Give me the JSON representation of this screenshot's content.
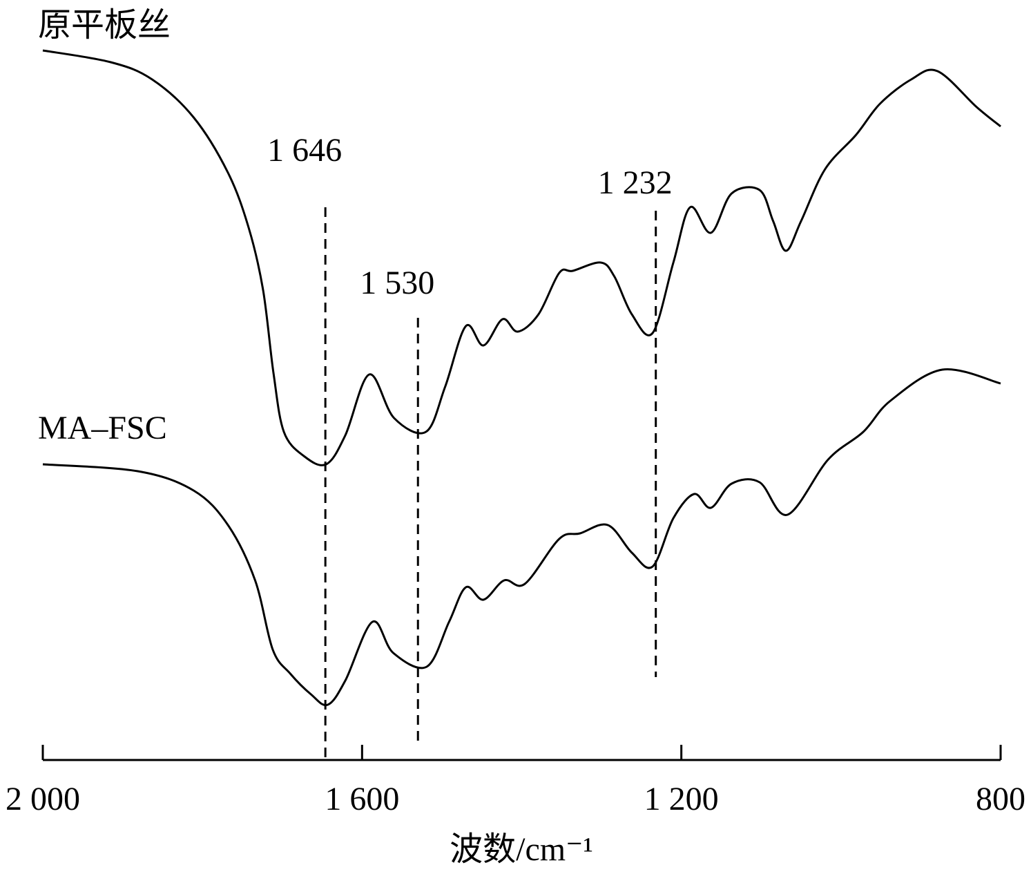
{
  "chart_data": {
    "type": "line",
    "xlabel": "波数/cm⁻¹",
    "xlim": [
      2000,
      800
    ],
    "xticks": [
      {
        "value": 2000,
        "label": "2 000"
      },
      {
        "value": 1600,
        "label": "1 600"
      },
      {
        "value": 1200,
        "label": "1 200"
      },
      800
    ],
    "ylim": [
      0,
      110
    ],
    "annotations": [
      {
        "value": 1646,
        "label": "1 646"
      },
      {
        "value": 1530,
        "label": "1 530"
      },
      {
        "value": 1232,
        "label": "1 232"
      }
    ],
    "series": [
      {
        "name": "原平板丝",
        "color": "#000000",
        "x": [
          2000,
          1915,
          1863,
          1811,
          1768,
          1742,
          1724,
          1711,
          1698,
          1673,
          1645,
          1621,
          1591,
          1560,
          1520,
          1496,
          1470,
          1448,
          1424,
          1405,
          1379,
          1353,
          1336,
          1301,
          1284,
          1262,
          1236,
          1210,
          1189,
          1163,
          1137,
          1102,
          1085,
          1069,
          1050,
          1020,
          981,
          951,
          912,
          879,
          830,
          800
        ],
        "values": [
          102.7,
          101,
          98.5,
          93,
          85,
          77,
          68,
          56,
          47.5,
          44,
          42.8,
          47,
          55.8,
          49.5,
          47.5,
          54,
          62.8,
          60,
          63.8,
          62,
          64.5,
          70.5,
          70.8,
          72,
          70,
          64.5,
          61.8,
          72,
          80,
          76.3,
          82,
          82.5,
          78,
          73.7,
          78,
          85.5,
          90.5,
          95,
          98.5,
          99.7,
          94.5,
          91.7
        ]
      },
      {
        "name": "MA–FSC",
        "color": "#000000",
        "x": [
          2000,
          1881,
          1811,
          1768,
          1734,
          1712,
          1690,
          1664,
          1643,
          1621,
          1587,
          1561,
          1519,
          1491,
          1470,
          1448,
          1422,
          1396,
          1353,
          1327,
          1292,
          1262,
          1236,
          1210,
          1184,
          1163,
          1137,
          1102,
          1067,
          1016,
          972,
          938,
          873,
          800
        ],
        "values": [
          42.8,
          41.8,
          39,
          34,
          26,
          16,
          12.5,
          9.5,
          8,
          11.5,
          20,
          15.5,
          13.5,
          20,
          25,
          23.2,
          26,
          25.5,
          32,
          32.8,
          34,
          30,
          28,
          35,
          38.5,
          36.5,
          40,
          40.2,
          35.5,
          43.5,
          47.5,
          52,
          56.5,
          54.5
        ]
      }
    ]
  }
}
